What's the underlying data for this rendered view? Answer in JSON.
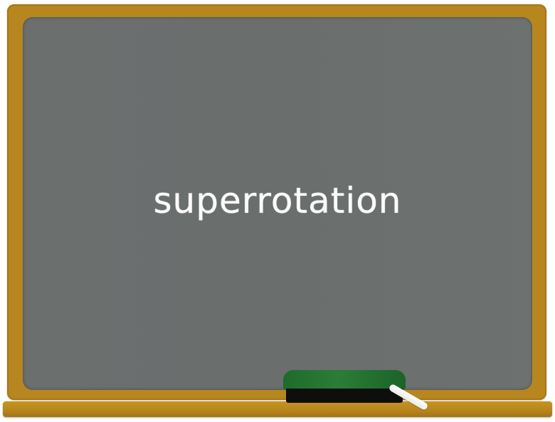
{
  "board": {
    "text": "superrotation"
  },
  "colors": {
    "frame": "#b8861f",
    "board": "#6b6f6e",
    "chalk_text": "#fbfbfb",
    "eraser_felt": "#2b7d36",
    "eraser_base": "#0e0e0e"
  },
  "objects": {
    "eraser": "eraser-icon",
    "chalk": "chalk-icon"
  }
}
